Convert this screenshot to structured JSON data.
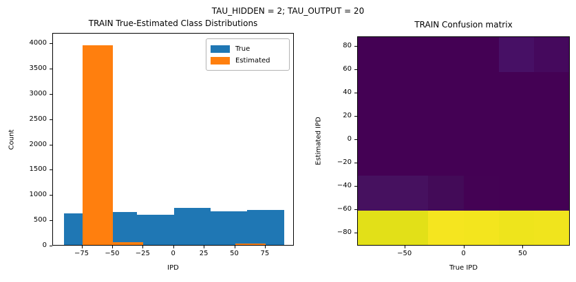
{
  "figure": {
    "suptitle": "TAU_HIDDEN = 2; TAU_OUTPUT = 20",
    "background": "#ffffff",
    "text_color": "#000000"
  },
  "chart_data": [
    {
      "type": "bar",
      "subtype": "histogram-overlay",
      "title": "TRAIN True-Estimated Class Distributions",
      "xlabel": "IPD",
      "ylabel": "Count",
      "xlim": [
        -99,
        99
      ],
      "ylim": [
        0,
        4200
      ],
      "grid": false,
      "legend_position": "upper right",
      "xticks": [
        {
          "v": -75,
          "label": "−75"
        },
        {
          "v": -50,
          "label": "−50"
        },
        {
          "v": -25,
          "label": "−25"
        },
        {
          "v": 0,
          "label": "0"
        },
        {
          "v": 25,
          "label": "25"
        },
        {
          "v": 50,
          "label": "50"
        },
        {
          "v": 75,
          "label": "75"
        }
      ],
      "yticks": [
        {
          "v": 0,
          "label": "0"
        },
        {
          "v": 500,
          "label": "500"
        },
        {
          "v": 1000,
          "label": "1000"
        },
        {
          "v": 1500,
          "label": "1500"
        },
        {
          "v": 2000,
          "label": "2000"
        },
        {
          "v": 2500,
          "label": "2500"
        },
        {
          "v": 3000,
          "label": "3000"
        },
        {
          "v": 3500,
          "label": "3500"
        },
        {
          "v": 4000,
          "label": "4000"
        }
      ],
      "series": [
        {
          "name": "True",
          "color": "#1f77b4",
          "bins": [
            {
              "from": -90,
              "to": -60,
              "count": 650
            },
            {
              "from": -60,
              "to": -30,
              "count": 680
            },
            {
              "from": -30,
              "to": 0,
              "count": 620
            },
            {
              "from": 0,
              "to": 30,
              "count": 760
            },
            {
              "from": 30,
              "to": 60,
              "count": 690
            },
            {
              "from": 60,
              "to": 90,
              "count": 720
            }
          ]
        },
        {
          "name": "Estimated",
          "color": "#ff7f0e",
          "bins": [
            {
              "from": -75,
              "to": -50,
              "count": 3980
            },
            {
              "from": -50,
              "to": -25,
              "count": 85
            },
            {
              "from": 50,
              "to": 75,
              "count": 54
            }
          ]
        }
      ]
    },
    {
      "type": "heatmap",
      "title": "TRAIN Confusion matrix",
      "xlabel": "True IPD",
      "ylabel": "Estimated IPD",
      "colormap": "viridis",
      "xlim": [
        -90,
        90
      ],
      "ylim": [
        -90,
        90
      ],
      "xticks": [
        {
          "v": -50,
          "label": "−50"
        },
        {
          "v": 0,
          "label": "0"
        },
        {
          "v": 50,
          "label": "50"
        }
      ],
      "yticks": [
        {
          "v": 80,
          "label": "80"
        },
        {
          "v": 60,
          "label": "60"
        },
        {
          "v": 40,
          "label": "40"
        },
        {
          "v": 20,
          "label": "20"
        },
        {
          "v": 0,
          "label": "0"
        },
        {
          "v": -20,
          "label": "−20"
        },
        {
          "v": -40,
          "label": "−40"
        },
        {
          "v": -60,
          "label": "−60"
        },
        {
          "v": -80,
          "label": "−80"
        }
      ],
      "row_bins_top_to_bottom": [
        [
          60,
          90
        ],
        [
          30,
          60
        ],
        [
          0,
          30
        ],
        [
          -30,
          0
        ],
        [
          -60,
          -30
        ],
        [
          -90,
          -60
        ]
      ],
      "col_bins_left_to_right": [
        [
          -90,
          -60
        ],
        [
          -60,
          -30
        ],
        [
          -30,
          0
        ],
        [
          0,
          30
        ],
        [
          30,
          60
        ],
        [
          60,
          90
        ]
      ],
      "cell_colors": [
        [
          "#440154",
          "#440154",
          "#440154",
          "#440154",
          "#471065",
          "#45095d"
        ],
        [
          "#440154",
          "#440154",
          "#440154",
          "#440154",
          "#440154",
          "#440154"
        ],
        [
          "#440154",
          "#440154",
          "#440154",
          "#440154",
          "#440154",
          "#440154"
        ],
        [
          "#440154",
          "#440154",
          "#440154",
          "#440154",
          "#440154",
          "#440154"
        ],
        [
          "#46115f",
          "#46115f",
          "#430b58",
          "#440254",
          "#440154",
          "#440154"
        ],
        [
          "#e2e018",
          "#e2e018",
          "#f5e51f",
          "#f3e51e",
          "#eee41c",
          "#f0e41d"
        ]
      ],
      "approx_counts": [
        [
          0,
          0,
          0,
          0,
          85,
          50
        ],
        [
          0,
          0,
          0,
          0,
          0,
          0
        ],
        [
          0,
          0,
          0,
          0,
          0,
          0
        ],
        [
          0,
          0,
          0,
          0,
          0,
          0
        ],
        [
          80,
          80,
          40,
          10,
          0,
          0
        ],
        [
          570,
          600,
          580,
          750,
          605,
          670
        ]
      ]
    }
  ]
}
